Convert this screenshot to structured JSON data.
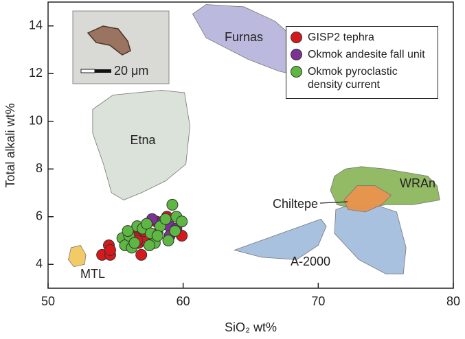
{
  "chart_data": {
    "type": "scatter",
    "x_label": "SiO₂ wt%",
    "y_label": "Total alkali wt%",
    "xlim": [
      50,
      80
    ],
    "ylim": [
      3,
      15
    ],
    "xticks": [
      50,
      60,
      70,
      80
    ],
    "yticks": [
      4,
      6,
      8,
      10,
      12,
      14
    ],
    "legend": "upper right",
    "regions": [
      {
        "name": "Furnas",
        "color": "#b7b6dc",
        "x": [
          60.7,
          61.7,
          64.5,
          66.8,
          68.4,
          68.6,
          67.1,
          64.8,
          61.7
        ],
        "y": [
          14.5,
          14.9,
          14.8,
          14.2,
          13.4,
          11.9,
          12.1,
          12.6,
          13.5
        ]
      },
      {
        "name": "Etna",
        "color": "#d8e0d7",
        "x": [
          53.3,
          54.8,
          58.4,
          60.1,
          60.5,
          60.2,
          58.7,
          56.9,
          55.6,
          54.7,
          54.1,
          53.3
        ],
        "y": [
          10.5,
          11.1,
          11.3,
          11.2,
          9.8,
          8.2,
          7.5,
          7.0,
          6.7,
          7.0,
          8.2,
          9.5
        ]
      },
      {
        "name": "MTL",
        "color": "#f2c85e",
        "x": [
          51.7,
          52.4,
          52.8,
          52.7,
          51.9,
          51.5
        ],
        "y": [
          4.7,
          4.8,
          4.4,
          4.0,
          3.9,
          4.2
        ]
      },
      {
        "name": "A-2000",
        "color": "#a3bedd",
        "x": [
          63.8,
          70.2,
          70.6,
          70.0,
          68.4,
          65.8
        ],
        "y": [
          4.6,
          5.9,
          5.6,
          4.8,
          4.2,
          4.3
        ]
      },
      {
        "name": null,
        "color": "#a3bedd",
        "x": [
          71.3,
          72.4,
          74.2,
          75.8,
          76.5,
          76.3,
          75.0,
          73.0,
          71.2
        ],
        "y": [
          6.3,
          6.5,
          6.5,
          6.2,
          4.7,
          3.6,
          3.6,
          4.2,
          5.3
        ]
      },
      {
        "name": "WRAn",
        "color": "#8db65d",
        "x": [
          71.2,
          72.0,
          73.2,
          75.0,
          78.1,
          78.8,
          79.0,
          77.0,
          75.0,
          73.0,
          71.4,
          70.9
        ],
        "y": [
          7.7,
          8.0,
          8.1,
          8.0,
          7.7,
          7.3,
          6.7,
          6.5,
          6.5,
          6.3,
          6.5,
          7.1
        ]
      },
      {
        "name": "Chiltepe",
        "color": "#e9924c",
        "x": [
          71.9,
          72.9,
          74.2,
          75.4,
          74.7,
          73.5,
          72.2
        ],
        "y": [
          6.7,
          7.3,
          7.3,
          6.9,
          6.5,
          6.2,
          6.3
        ]
      }
    ],
    "series": [
      {
        "name": "GISP2 tephra",
        "color": "#d7191c",
        "x": [
          54.0,
          54.6,
          54.5,
          54.6,
          56.3,
          56.5,
          56.7,
          56.9,
          57.2,
          57.8,
          58.0,
          58.1,
          58.8,
          59.9,
          57.1,
          56.6
        ],
        "values": [
          4.4,
          4.4,
          4.8,
          4.6,
          5.3,
          5.1,
          4.9,
          4.4,
          5.0,
          5.2,
          5.8,
          5.3,
          6.0,
          5.2,
          5.4,
          5.0
        ]
      },
      {
        "name": "Okmok andesite fall unit",
        "color": "#7b3294",
        "x": [
          57.7,
          58.5,
          59.0,
          59.5,
          59.0
        ],
        "values": [
          5.9,
          5.8,
          5.6,
          5.5,
          5.2
        ]
      },
      {
        "name": "Okmok pyroclastic density current",
        "color": "#5db742",
        "x": [
          55.5,
          55.7,
          56.0,
          56.2,
          56.6,
          57.0,
          57.3,
          57.6,
          57.9,
          58.3,
          58.7,
          59.2,
          59.5,
          59.9,
          59.4,
          58.9,
          57.5,
          56.4,
          55.9,
          58.1
        ],
        "values": [
          5.1,
          4.8,
          5.2,
          4.7,
          5.6,
          5.5,
          5.7,
          5.3,
          4.9,
          5.6,
          5.9,
          6.5,
          6.0,
          5.8,
          5.4,
          5.0,
          4.8,
          4.9,
          5.4,
          5.2
        ]
      }
    ]
  },
  "inset": {
    "scale_label": "20 μm"
  }
}
